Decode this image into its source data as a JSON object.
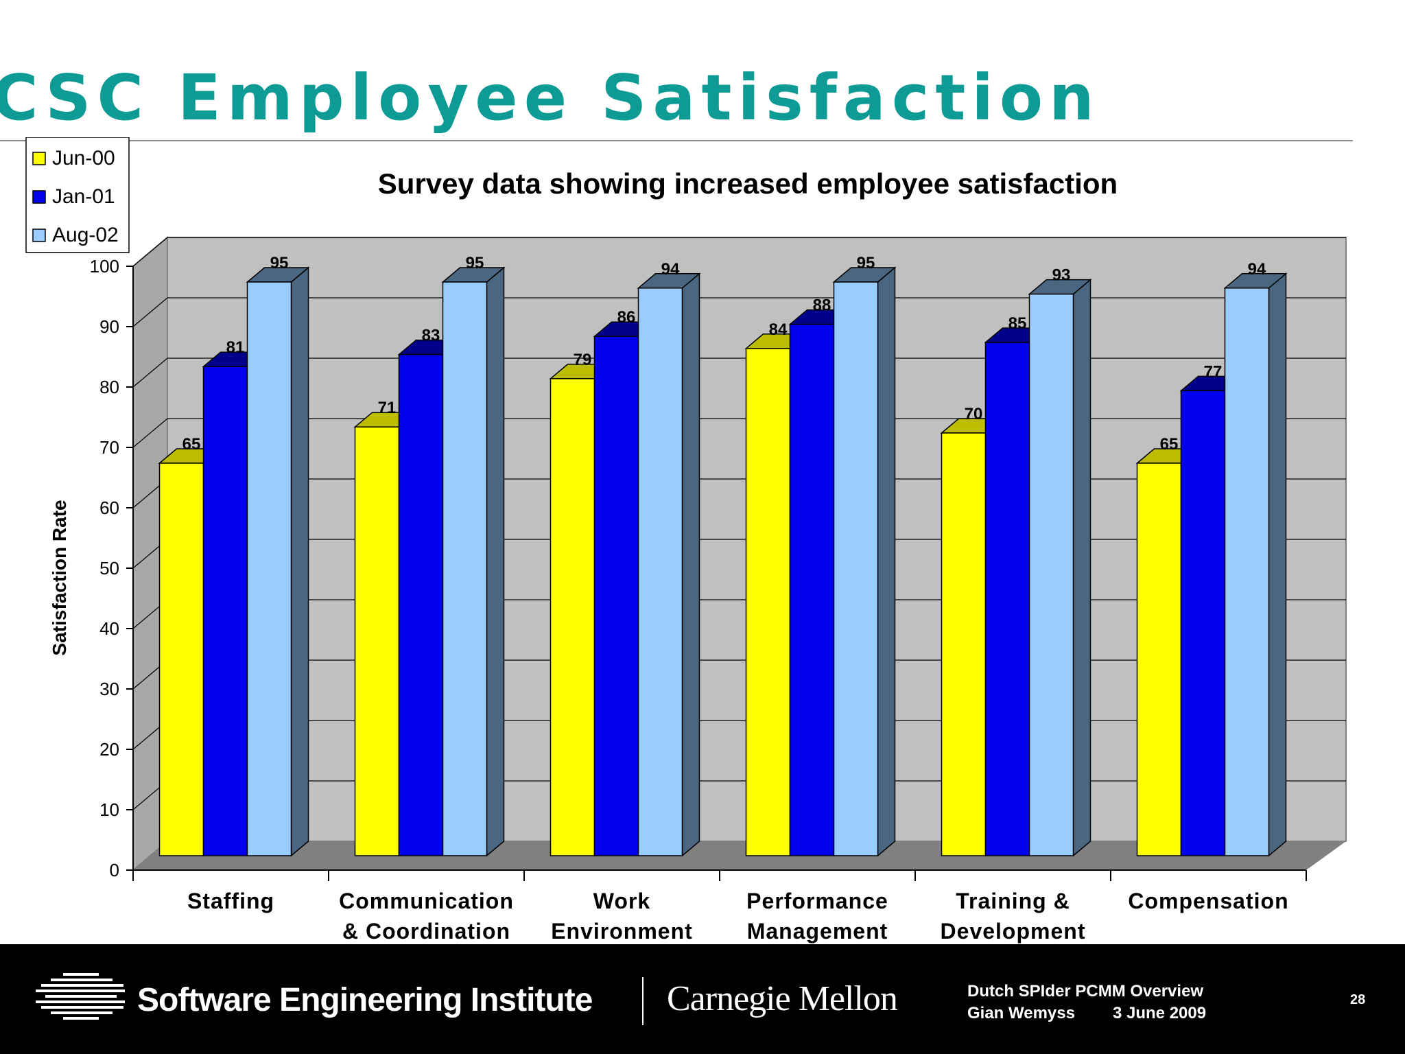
{
  "slide": {
    "title": "CSC Employee Satisfaction",
    "page_number": "28"
  },
  "footer": {
    "institute": "Software Engineering Institute",
    "university": "Carnegie Mellon",
    "presentation": "Dutch SPIder PCMM Overview",
    "author": "Gian Wemyss",
    "date": "3 June 2009",
    "logo_icon": "sei-stripes-logo-icon"
  },
  "chart_data": {
    "type": "bar",
    "title": "Survey data showing increased employee satisfaction",
    "xlabel": "",
    "ylabel": "Satisfaction Rate",
    "ylim": [
      0,
      100
    ],
    "yticks": [
      "0",
      "10",
      "20",
      "30",
      "40",
      "50",
      "60",
      "70",
      "80",
      "90",
      "100"
    ],
    "grid": true,
    "legend_position": "top-left",
    "categories": [
      [
        "Staffing"
      ],
      [
        "Communication",
        "& Coordination"
      ],
      [
        "Work",
        "Environment"
      ],
      [
        "Performance",
        "Management"
      ],
      [
        "Training &",
        "Development"
      ],
      [
        "Compensation"
      ]
    ],
    "series": [
      {
        "name": "Jun-00",
        "color": "#ffff00",
        "side": "#bcbc00",
        "values": [
          65,
          71,
          79,
          84,
          70,
          65
        ]
      },
      {
        "name": "Jan-01",
        "color": "#0000ee",
        "side": "#00008a",
        "values": [
          81,
          83,
          86,
          88,
          85,
          77
        ]
      },
      {
        "name": "Aug-02",
        "color": "#99ccff",
        "side": "#4a6680",
        "values": [
          95,
          95,
          94,
          95,
          93,
          94
        ]
      }
    ],
    "colors": {
      "wall": "#c0c0c0",
      "side_wall": "#a8a8a8",
      "floor": "#808080"
    }
  }
}
